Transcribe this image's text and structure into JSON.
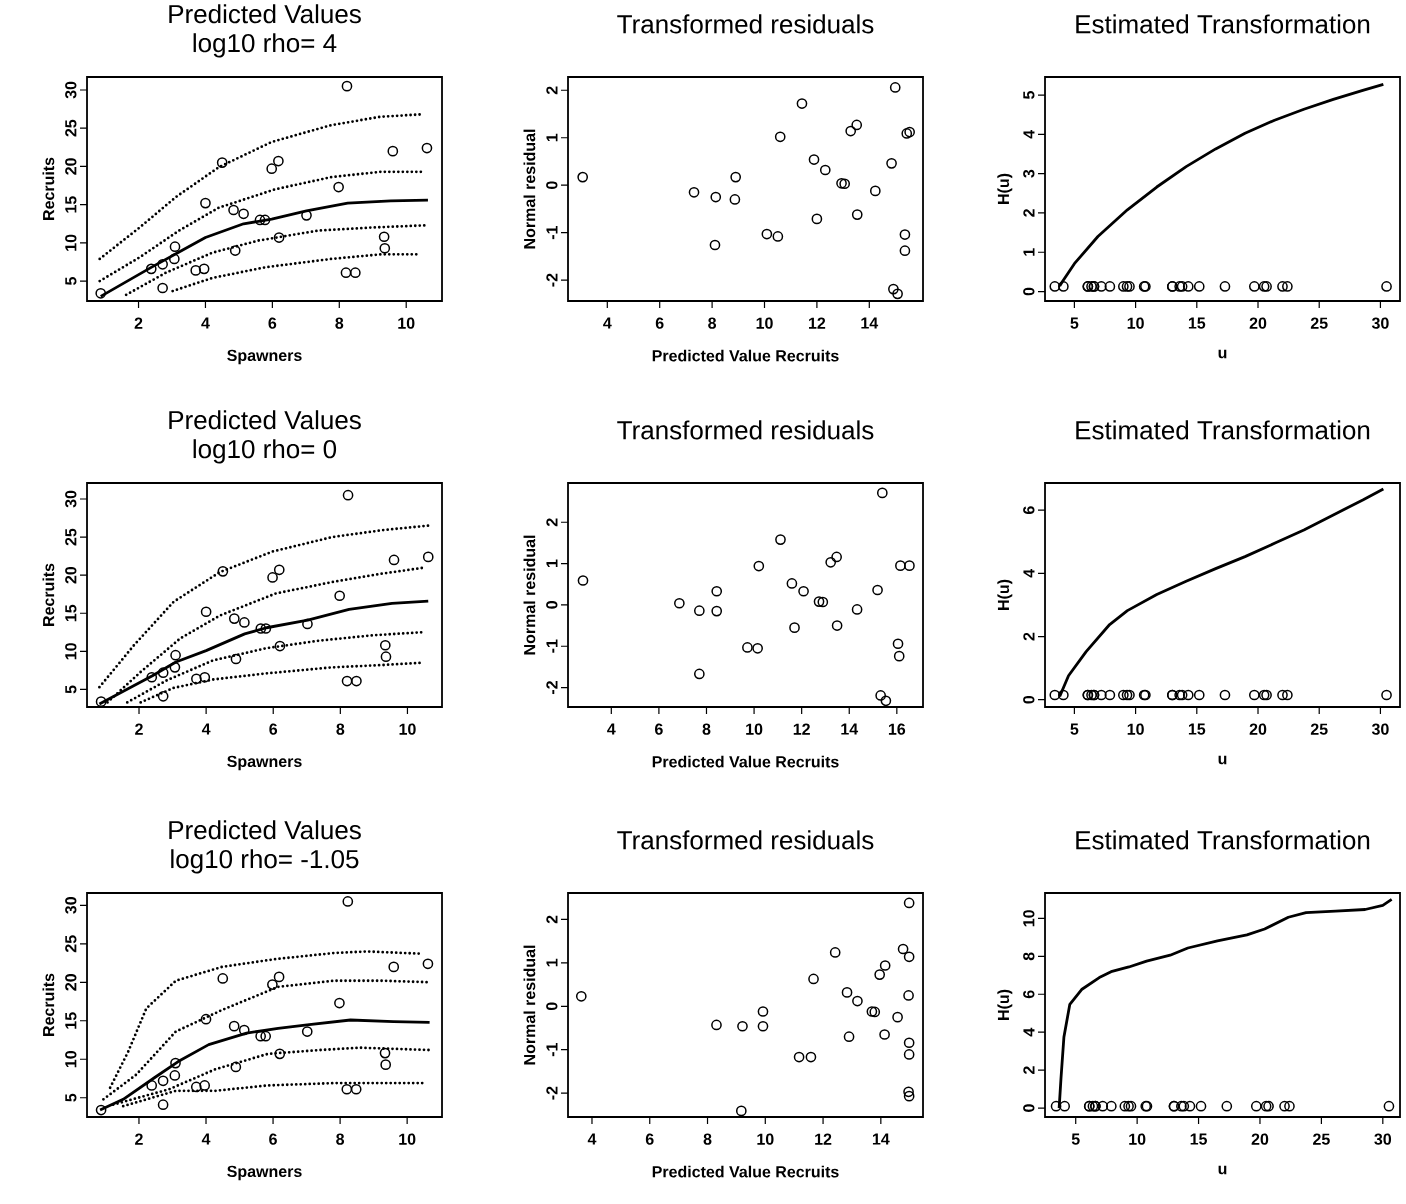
{
  "chart_data": [
    {
      "type": "scatter",
      "title": "Predicted Values",
      "subtitle": "log10 rho= 4",
      "xlabel": "Spawners",
      "ylabel": "Recruits",
      "xlim": [
        0.46,
        11.07
      ],
      "ylim": [
        2.4,
        31.7
      ],
      "xticks": [
        2,
        4,
        6,
        8,
        10
      ],
      "yticks": [
        5,
        10,
        15,
        20,
        25,
        30
      ],
      "series": [
        {
          "marker": "circle",
          "color": "#000000",
          "x": [
            0.87,
            2.38,
            2.72,
            2.72,
            3.07,
            3.09,
            3.71,
            3.96,
            4.0,
            4.5,
            4.84,
            4.89,
            5.14,
            5.63,
            5.78,
            5.98,
            6.18,
            6.2,
            7.02,
            7.98,
            8.23,
            8.2,
            8.48,
            9.34,
            9.36,
            9.6,
            10.62
          ],
          "values": [
            3.4,
            6.6,
            7.2,
            4.1,
            7.9,
            9.5,
            6.4,
            6.6,
            15.2,
            20.5,
            14.3,
            9.0,
            13.8,
            13.0,
            13.0,
            19.7,
            20.7,
            10.7,
            13.6,
            17.3,
            30.5,
            6.1,
            6.1,
            10.8,
            9.3,
            22.0,
            22.4
          ]
        },
        {
          "type": "line",
          "marker": "none",
          "line_style": "solid",
          "color": "#000000",
          "x": [
            0.87,
            2.38,
            3.09,
            4.0,
            5.14,
            5.98,
            7.02,
            8.25,
            9.54,
            10.65
          ],
          "values": [
            3.0,
            6.8,
            8.5,
            10.7,
            12.5,
            13.1,
            14.2,
            15.2,
            15.5,
            15.6
          ]
        },
        {
          "type": "line",
          "marker": "none",
          "line_style": "dotted",
          "color": "#000000",
          "x": [
            0.84,
            2.03,
            3.12,
            4.4,
            5.98,
            7.76,
            9.24,
            10.42
          ],
          "values": [
            7.9,
            12.0,
            16.0,
            19.9,
            23.2,
            25.4,
            26.5,
            26.8
          ]
        },
        {
          "type": "line",
          "marker": "none",
          "line_style": "dotted",
          "color": "#000000",
          "x": [
            0.84,
            2.03,
            3.21,
            4.4,
            6.08,
            7.76,
            9.24,
            10.52
          ],
          "values": [
            5.0,
            8.1,
            11.6,
            14.6,
            17.0,
            18.6,
            19.3,
            19.3
          ]
        },
        {
          "type": "line",
          "marker": "none",
          "line_style": "dotted",
          "color": "#000000",
          "x": [
            1.63,
            2.82,
            4.2,
            5.58,
            7.36,
            8.94,
            10.62
          ],
          "values": [
            3.2,
            6.1,
            8.7,
            10.3,
            11.6,
            12.0,
            12.3
          ]
        },
        {
          "type": "line",
          "marker": "none",
          "line_style": "dotted",
          "color": "#000000",
          "x": [
            3.02,
            4.2,
            5.78,
            7.76,
            9.24,
            10.42
          ],
          "values": [
            3.7,
            5.4,
            6.8,
            7.9,
            8.5,
            8.5
          ]
        }
      ]
    },
    {
      "type": "scatter",
      "title": "Transformed residuals",
      "xlabel": "Predicted Value Recruits",
      "ylabel": "Normal residual",
      "xlim": [
        2.5,
        16.05
      ],
      "ylim": [
        -2.44,
        2.28
      ],
      "xticks": [
        4,
        6,
        8,
        10,
        12,
        14
      ],
      "yticks": [
        -2,
        -1,
        0,
        1,
        2
      ],
      "series": [
        {
          "marker": "circle",
          "color": "#000000",
          "x": [
            3.06,
            7.31,
            8.14,
            8.11,
            8.9,
            8.87,
            10.09,
            10.51,
            10.6,
            11.43,
            11.89,
            12.32,
            12.0,
            12.94,
            13.06,
            13.29,
            13.52,
            13.54,
            14.23,
            14.85,
            14.99,
            14.92,
            15.08,
            15.36,
            15.36,
            15.43,
            15.54
          ],
          "values": [
            0.17,
            -0.15,
            -0.25,
            -1.26,
            0.17,
            -0.3,
            -1.03,
            -1.08,
            1.02,
            1.72,
            0.54,
            0.32,
            -0.71,
            0.04,
            0.03,
            1.14,
            1.27,
            -0.62,
            -0.12,
            0.46,
            2.06,
            -2.19,
            -2.29,
            -1.04,
            -1.38,
            1.09,
            1.12
          ]
        }
      ]
    },
    {
      "type": "line",
      "title": "Estimated Transformation",
      "xlabel": "u",
      "ylabel": "H(u)",
      "xlim": [
        2.6,
        31.6
      ],
      "ylim": [
        -0.24,
        5.46
      ],
      "xticks": [
        5,
        10,
        15,
        20,
        25,
        30
      ],
      "yticks": [
        0,
        1,
        2,
        3,
        4,
        5
      ],
      "series": [
        {
          "marker": "none",
          "line_style": "solid",
          "color": "#000000",
          "x": [
            3.8,
            4.04,
            5.0,
            6.92,
            9.33,
            11.73,
            14.13,
            16.54,
            18.94,
            21.35,
            23.75,
            26.15,
            28.56,
            30.24
          ],
          "values": [
            0.14,
            0.26,
            0.71,
            1.4,
            2.08,
            2.66,
            3.18,
            3.63,
            4.03,
            4.36,
            4.64,
            4.89,
            5.12,
            5.27
          ]
        },
        {
          "type": "scatter",
          "marker": "circle",
          "color": "#000000",
          "x": [
            3.4,
            6.6,
            7.2,
            4.1,
            7.9,
            9.5,
            6.4,
            6.6,
            15.2,
            20.5,
            14.3,
            9.0,
            13.8,
            13.0,
            13.0,
            19.7,
            20.7,
            10.7,
            13.6,
            17.3,
            30.5,
            6.1,
            6.1,
            10.8,
            9.3,
            22.0,
            22.4
          ],
          "values": [
            0.13,
            0.13,
            0.13,
            0.13,
            0.13,
            0.13,
            0.13,
            0.13,
            0.13,
            0.13,
            0.13,
            0.13,
            0.13,
            0.13,
            0.13,
            0.13,
            0.13,
            0.13,
            0.13,
            0.13,
            0.13,
            0.13,
            0.13,
            0.13,
            0.13,
            0.13,
            0.13
          ]
        }
      ]
    },
    {
      "type": "scatter",
      "title": "Predicted Values",
      "subtitle": "log10 rho= 0",
      "xlabel": "Spawners",
      "ylabel": "Recruits",
      "xlim": [
        0.45,
        11.03
      ],
      "ylim": [
        2.7,
        32.1
      ],
      "xticks": [
        2,
        4,
        6,
        8,
        10
      ],
      "yticks": [
        5,
        10,
        15,
        20,
        25,
        30
      ],
      "series": [
        {
          "marker": "circle",
          "color": "#000000",
          "x": [
            0.87,
            2.38,
            2.72,
            2.72,
            3.07,
            3.09,
            3.71,
            3.96,
            4.0,
            4.5,
            4.84,
            4.89,
            5.14,
            5.63,
            5.78,
            5.98,
            6.18,
            6.2,
            7.02,
            7.98,
            8.23,
            8.2,
            8.48,
            9.34,
            9.36,
            9.6,
            10.62
          ],
          "values": [
            3.4,
            6.6,
            7.2,
            4.1,
            7.9,
            9.5,
            6.4,
            6.6,
            15.2,
            20.5,
            14.3,
            9.0,
            13.8,
            13.0,
            13.0,
            19.7,
            20.7,
            10.7,
            13.6,
            17.3,
            30.5,
            6.1,
            6.1,
            10.8,
            9.3,
            22.0,
            22.4
          ]
        },
        {
          "type": "line",
          "marker": "none",
          "line_style": "solid",
          "color": "#000000",
          "x": [
            0.82,
            2.4,
            3.1,
            4.0,
            5.15,
            5.8,
            7.03,
            8.26,
            9.54,
            10.62
          ],
          "values": [
            3.1,
            6.8,
            8.6,
            10.1,
            12.3,
            13.1,
            14.1,
            15.5,
            16.3,
            16.6
          ]
        },
        {
          "type": "line",
          "marker": "none",
          "line_style": "dotted",
          "color": "#000000",
          "x": [
            0.82,
            1.85,
            3.03,
            4.41,
            5.98,
            7.76,
            9.24,
            10.62
          ],
          "values": [
            5.3,
            10.8,
            16.5,
            20.4,
            23.1,
            25.0,
            25.9,
            26.5
          ]
        },
        {
          "type": "line",
          "marker": "none",
          "line_style": "dotted",
          "color": "#000000",
          "x": [
            1.06,
            2.05,
            3.23,
            4.41,
            6.08,
            7.76,
            9.24,
            10.52
          ],
          "values": [
            3.3,
            7.3,
            11.7,
            14.7,
            17.6,
            19.1,
            20.2,
            21.0
          ]
        },
        {
          "type": "line",
          "marker": "none",
          "line_style": "dotted",
          "color": "#000000",
          "x": [
            1.65,
            2.83,
            4.2,
            5.78,
            7.36,
            8.94,
            10.42
          ],
          "values": [
            3.3,
            6.2,
            8.8,
            10.4,
            11.4,
            12.1,
            12.5
          ]
        },
        {
          "type": "line",
          "marker": "none",
          "line_style": "dotted",
          "color": "#000000",
          "x": [
            2.05,
            3.03,
            4.2,
            5.78,
            7.76,
            9.24,
            10.42
          ],
          "values": [
            3.3,
            5.2,
            6.3,
            7.1,
            7.9,
            8.2,
            8.5
          ]
        }
      ]
    },
    {
      "type": "scatter",
      "title": "Transformed residuals",
      "xlabel": "Predicted Value Recruits",
      "ylabel": "Normal residual",
      "xlim": [
        2.18,
        17.1
      ],
      "ylim": [
        -2.47,
        2.95
      ],
      "xticks": [
        4,
        6,
        8,
        10,
        12,
        14,
        16
      ],
      "yticks": [
        -2,
        -1,
        0,
        1,
        2
      ],
      "series": [
        {
          "marker": "circle",
          "color": "#000000",
          "x": [
            2.81,
            6.86,
            7.7,
            7.7,
            8.43,
            8.43,
            9.72,
            10.15,
            10.2,
            11.11,
            11.59,
            11.7,
            12.08,
            12.73,
            12.89,
            13.22,
            13.47,
            13.49,
            14.33,
            15.19,
            15.39,
            15.32,
            15.54,
            16.05,
            16.1,
            16.15,
            16.53
          ],
          "values": [
            0.59,
            0.04,
            -0.14,
            -1.67,
            0.33,
            -0.15,
            -1.03,
            -1.05,
            0.94,
            1.58,
            0.52,
            -0.55,
            0.33,
            0.08,
            0.07,
            1.03,
            1.16,
            -0.5,
            -0.11,
            0.36,
            2.71,
            -2.19,
            -2.32,
            -0.94,
            -1.24,
            0.95,
            0.95
          ]
        }
      ]
    },
    {
      "type": "line",
      "title": "Estimated Transformation",
      "xlabel": "u",
      "ylabel": "H(u)",
      "xlim": [
        2.6,
        31.6
      ],
      "ylim": [
        -0.23,
        6.86
      ],
      "xticks": [
        5,
        10,
        15,
        20,
        25,
        30
      ],
      "yticks": [
        0,
        2,
        4,
        6
      ],
      "series": [
        {
          "marker": "none",
          "line_style": "solid",
          "color": "#000000",
          "x": [
            3.8,
            4.52,
            5.96,
            7.88,
            9.33,
            11.73,
            14.13,
            16.54,
            18.94,
            21.35,
            23.75,
            26.15,
            28.56,
            30.24
          ],
          "values": [
            0.1,
            0.76,
            1.52,
            2.38,
            2.82,
            3.33,
            3.75,
            4.15,
            4.53,
            4.95,
            5.37,
            5.85,
            6.32,
            6.67
          ]
        },
        {
          "type": "scatter",
          "marker": "circle",
          "color": "#000000",
          "x": [
            3.4,
            6.6,
            7.2,
            4.1,
            7.9,
            9.5,
            6.4,
            6.6,
            15.2,
            20.5,
            14.3,
            9.0,
            13.8,
            13.0,
            13.0,
            19.7,
            20.7,
            10.7,
            13.6,
            17.3,
            30.5,
            6.1,
            6.1,
            10.8,
            9.3,
            22.0,
            22.4
          ],
          "values": [
            0.15,
            0.15,
            0.15,
            0.15,
            0.15,
            0.15,
            0.15,
            0.15,
            0.15,
            0.15,
            0.15,
            0.15,
            0.15,
            0.15,
            0.15,
            0.15,
            0.15,
            0.15,
            0.15,
            0.15,
            0.15,
            0.15,
            0.15,
            0.15,
            0.15,
            0.15,
            0.15
          ]
        }
      ]
    },
    {
      "type": "scatter",
      "title": "Predicted Values",
      "subtitle": "log10 rho= -1.05",
      "xlabel": "Spawners",
      "ylabel": "Recruits",
      "xlim": [
        0.45,
        11.04
      ],
      "ylim": [
        2.5,
        31.6
      ],
      "xticks": [
        2,
        4,
        6,
        8,
        10
      ],
      "yticks": [
        5,
        10,
        15,
        20,
        25,
        30
      ],
      "series": [
        {
          "marker": "circle",
          "color": "#000000",
          "x": [
            0.87,
            2.38,
            2.72,
            2.72,
            3.07,
            3.09,
            3.71,
            3.96,
            4.0,
            4.5,
            4.84,
            4.89,
            5.14,
            5.63,
            5.78,
            5.98,
            6.18,
            6.2,
            7.02,
            7.98,
            8.23,
            8.2,
            8.48,
            9.34,
            9.36,
            9.6,
            10.62
          ],
          "values": [
            3.4,
            6.6,
            7.2,
            4.1,
            7.9,
            9.5,
            6.4,
            6.6,
            15.2,
            20.5,
            14.3,
            9.0,
            13.8,
            13.0,
            13.0,
            19.7,
            20.7,
            10.7,
            13.6,
            17.3,
            30.5,
            6.1,
            6.1,
            10.8,
            9.3,
            22.0,
            22.4
          ]
        },
        {
          "type": "line",
          "marker": "none",
          "line_style": "solid",
          "color": "#000000",
          "x": [
            0.84,
            1.53,
            2.46,
            3.17,
            4.08,
            5.21,
            6.15,
            7.08,
            8.31,
            9.59,
            10.67
          ],
          "values": [
            3.4,
            4.8,
            7.6,
            9.7,
            11.9,
            13.4,
            14.0,
            14.5,
            15.1,
            14.9,
            14.8
          ]
        },
        {
          "type": "line",
          "marker": "none",
          "line_style": "dotted",
          "color": "#000000",
          "x": [
            1.14,
            1.68,
            2.22,
            3.1,
            4.48,
            6.05,
            7.82,
            8.8,
            10.47
          ],
          "values": [
            6.3,
            11.0,
            16.6,
            20.2,
            22.0,
            23.0,
            23.8,
            24.0,
            23.7
          ]
        },
        {
          "type": "line",
          "marker": "none",
          "line_style": "dotted",
          "color": "#000000",
          "x": [
            0.94,
            1.92,
            3.1,
            4.48,
            6.15,
            7.82,
            9.29,
            10.67
          ],
          "values": [
            4.8,
            8.0,
            13.6,
            16.4,
            19.4,
            20.2,
            20.2,
            20.0
          ]
        },
        {
          "type": "line",
          "marker": "none",
          "line_style": "dotted",
          "color": "#000000",
          "x": [
            1.23,
            2.9,
            4.28,
            5.85,
            7.42,
            8.6,
            10.67
          ],
          "values": [
            4.1,
            6.1,
            8.7,
            10.7,
            11.2,
            11.5,
            11.2
          ]
        },
        {
          "type": "line",
          "marker": "none",
          "line_style": "dotted",
          "color": "#000000",
          "x": [
            1.53,
            3.1,
            4.28,
            5.85,
            7.82,
            10.47
          ],
          "values": [
            3.9,
            5.9,
            5.9,
            6.6,
            6.9,
            6.9
          ]
        }
      ]
    },
    {
      "type": "scatter",
      "title": "Transformed residuals",
      "xlabel": "Predicted Value Recruits",
      "ylabel": "Normal residual",
      "xlim": [
        3.17,
        15.46
      ],
      "ylim": [
        -2.55,
        2.61
      ],
      "xticks": [
        4,
        6,
        8,
        10,
        12,
        14
      ],
      "yticks": [
        -2,
        -1,
        0,
        1,
        2
      ],
      "series": [
        {
          "marker": "circle",
          "color": "#000000",
          "x": [
            3.63,
            8.31,
            9.21,
            9.17,
            9.92,
            9.92,
            11.17,
            11.58,
            11.67,
            12.42,
            12.83,
            12.9,
            13.19,
            13.69,
            13.79,
            13.96,
            14.15,
            14.13,
            14.58,
            14.77,
            14.98,
            14.96,
            14.98,
            14.98,
            14.98,
            14.96,
            14.98
          ],
          "values": [
            0.23,
            -0.43,
            -0.46,
            -2.41,
            -0.12,
            -0.46,
            -1.17,
            -1.17,
            0.63,
            1.24,
            0.32,
            -0.7,
            0.12,
            -0.12,
            -0.13,
            0.73,
            0.94,
            -0.65,
            -0.25,
            1.32,
            2.38,
            -1.97,
            -2.07,
            -0.84,
            -1.11,
            0.25,
            1.14
          ]
        }
      ]
    },
    {
      "type": "line",
      "title": "Estimated Transformation",
      "xlabel": "u",
      "ylabel": "H(u)",
      "xlim": [
        2.5,
        31.4
      ],
      "ylim": [
        -0.47,
        11.34
      ],
      "xticks": [
        5,
        10,
        15,
        20,
        25,
        30
      ],
      "yticks": [
        0,
        2,
        4,
        6,
        8,
        10
      ],
      "series": [
        {
          "marker": "none",
          "line_style": "solid",
          "color": "#000000",
          "x": [
            3.65,
            3.8,
            4.04,
            4.52,
            5.48,
            6.92,
            7.88,
            9.33,
            10.77,
            12.69,
            14.13,
            16.54,
            18.94,
            20.38,
            22.31,
            23.75,
            26.15,
            28.56,
            30.0,
            30.72
          ],
          "values": [
            0.0,
            1.56,
            3.75,
            5.47,
            6.25,
            6.88,
            7.19,
            7.44,
            7.75,
            8.06,
            8.44,
            8.81,
            9.13,
            9.44,
            10.06,
            10.31,
            10.38,
            10.47,
            10.69,
            11.0
          ]
        },
        {
          "type": "scatter",
          "marker": "circle",
          "color": "#000000",
          "x": [
            3.4,
            6.6,
            7.2,
            4.1,
            7.9,
            9.5,
            6.4,
            6.6,
            15.2,
            20.5,
            14.3,
            9.0,
            13.8,
            13.0,
            13.0,
            19.7,
            20.7,
            10.7,
            13.6,
            17.3,
            30.5,
            6.1,
            6.1,
            10.8,
            9.3,
            22.0,
            22.4
          ],
          "values": [
            0.1,
            0.1,
            0.1,
            0.1,
            0.1,
            0.1,
            0.1,
            0.1,
            0.1,
            0.1,
            0.1,
            0.1,
            0.1,
            0.1,
            0.1,
            0.1,
            0.1,
            0.1,
            0.1,
            0.1,
            0.1,
            0.1,
            0.1,
            0.1,
            0.1,
            0.1,
            0.1
          ]
        }
      ]
    }
  ]
}
